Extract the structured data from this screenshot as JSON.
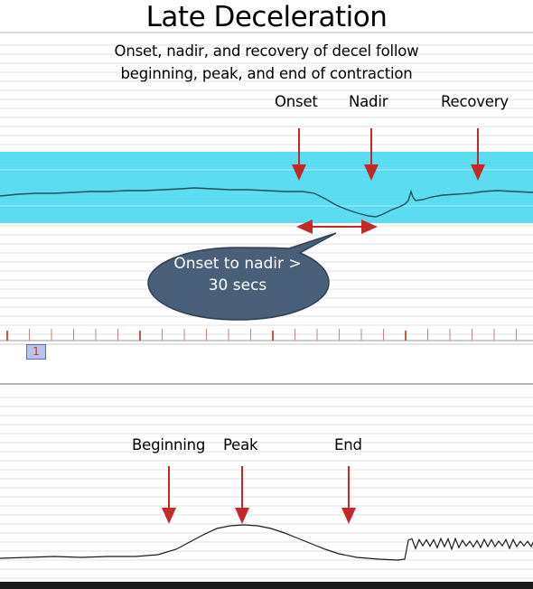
{
  "slide": {
    "title": "Late Deceleration",
    "subtitle_line1": "Onset, nadir, and recovery of decel follow",
    "subtitle_line2": "beginning, peak, and end of contraction"
  },
  "fhr_panel": {
    "labels": {
      "onset": "Onset",
      "nadir": "Nadir",
      "recovery": "Recovery"
    },
    "callout_line1": "Onset to nadir >",
    "callout_line2": "30 secs",
    "marker": "1"
  },
  "uc_panel": {
    "labels": {
      "beginning": "Beginning",
      "peak": "Peak",
      "end": "End"
    }
  },
  "colors": {
    "band": "#3fd6ee",
    "trace": "#1f4f5a",
    "arrow": "#c62828",
    "callout": "#4a5f7a",
    "grid": "#cfcfcf"
  }
}
